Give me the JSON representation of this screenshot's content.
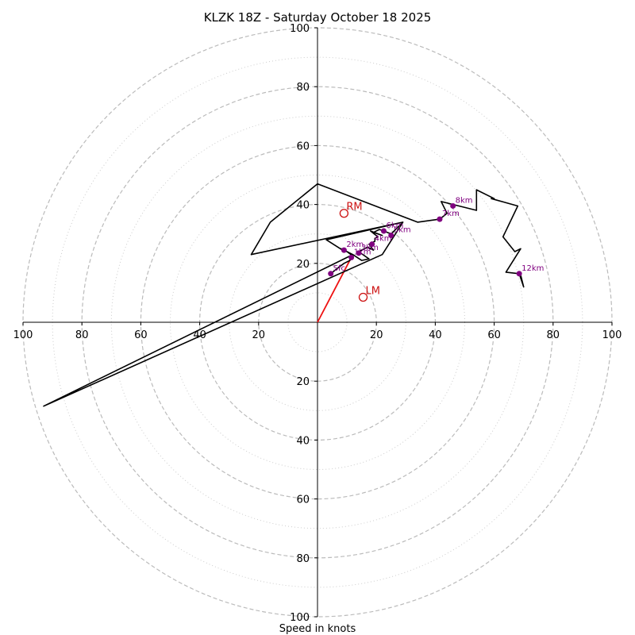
{
  "chart_data": {
    "type": "hodograph",
    "title": "KLZK 18Z - Saturday October 18 2025",
    "xlabel": "Speed in knots",
    "range": [
      -100,
      100
    ],
    "major_rings": [
      20,
      40,
      60,
      80,
      100
    ],
    "minor_rings": [
      10,
      30,
      50,
      70,
      90
    ],
    "tick_values": [
      20,
      40,
      60,
      80,
      100
    ],
    "colors": {
      "trace": "#000000",
      "height_marker": "#800080",
      "motion": "#cc1111",
      "shear_vector": "#ee1111",
      "major_ring": "#bbbbbb",
      "minor_ring": "#cccccc"
    },
    "trace": [
      [
        4.5,
        16.5
      ],
      [
        7,
        18.5
      ],
      [
        9,
        20
      ],
      [
        11,
        21
      ],
      [
        11.5,
        22
      ],
      [
        12,
        22.5
      ],
      [
        10,
        24
      ],
      [
        8,
        25
      ],
      [
        12,
        23
      ],
      [
        15,
        21
      ],
      [
        17.5,
        21.5
      ],
      [
        14,
        24
      ],
      [
        17,
        25.5
      ],
      [
        19,
        24.5
      ],
      [
        17.5,
        26.5
      ],
      [
        18.5,
        27
      ],
      [
        19.5,
        27.5
      ],
      [
        19.5,
        28.5
      ],
      [
        20.5,
        29
      ],
      [
        18,
        31
      ],
      [
        22,
        29.5
      ],
      [
        19,
        30.5
      ],
      [
        21,
        31.5
      ],
      [
        22.5,
        31
      ],
      [
        25,
        30
      ],
      [
        29,
        34
      ],
      [
        22,
        23
      ],
      [
        -93,
        -28.5
      ],
      [
        10,
        22
      ],
      [
        12,
        23
      ],
      [
        10,
        24
      ],
      [
        8.5,
        24.5
      ],
      [
        3,
        28
      ],
      [
        29,
        34
      ],
      [
        -22.5,
        23
      ],
      [
        -16,
        34
      ],
      [
        0,
        47
      ],
      [
        34,
        34
      ],
      [
        41.5,
        35
      ],
      [
        44,
        37
      ],
      [
        42,
        41
      ],
      [
        46,
        40
      ],
      [
        54,
        38
      ],
      [
        54,
        45
      ],
      [
        60,
        42
      ],
      [
        59,
        42
      ],
      [
        68,
        39.5
      ],
      [
        63,
        29
      ],
      [
        67,
        24
      ],
      [
        69,
        25
      ],
      [
        64,
        17
      ],
      [
        68.5,
        16.5
      ],
      [
        70,
        12
      ],
      [
        69,
        16
      ]
    ],
    "height_markers": [
      {
        "label": "Sfc",
        "u": 4.5,
        "v": 16.5
      },
      {
        "label": "1km",
        "u": 11.5,
        "v": 22
      },
      {
        "label": "2km",
        "u": 9,
        "v": 24.5
      },
      {
        "label": "3km",
        "u": 14,
        "v": 23.5
      },
      {
        "label": "4km",
        "u": 18.5,
        "v": 26.5
      },
      {
        "label": "5km",
        "u": 25,
        "v": 29.5
      },
      {
        "label": "6km",
        "u": 22.5,
        "v": 31
      },
      {
        "label": "7km",
        "u": 41.5,
        "v": 35
      },
      {
        "label": "8km",
        "u": 46,
        "v": 39.5
      },
      {
        "label": "12km",
        "u": 68.5,
        "v": 16.5
      }
    ],
    "storm_motion": [
      {
        "label": "RM",
        "u": 9,
        "v": 37
      },
      {
        "label": "LM",
        "u": 15.5,
        "v": 8.5
      }
    ],
    "shear_vector": {
      "from": [
        0,
        0
      ],
      "to": [
        12,
        23
      ]
    }
  }
}
